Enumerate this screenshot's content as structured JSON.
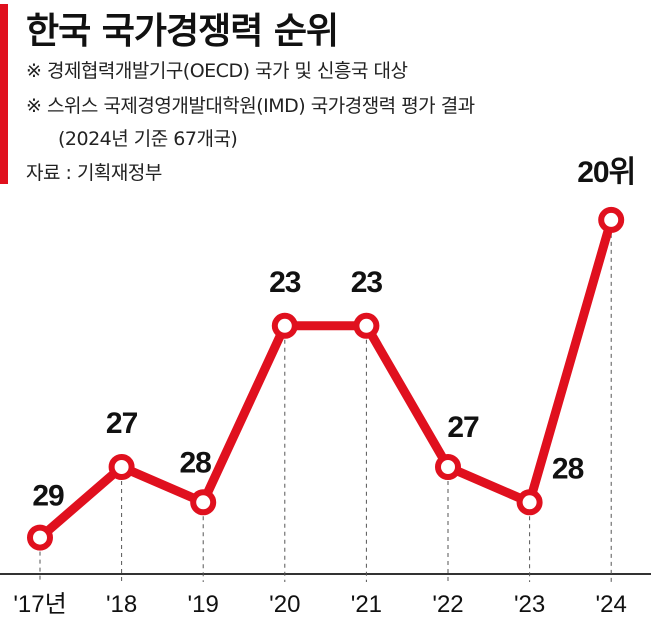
{
  "title": "한국 국가경쟁력 순위",
  "notes": [
    "※  경제협력개발기구(OECD) 국가 및 신흥국 대상",
    "※  스위스 국제경영개발대학원(IMD) 국가경쟁력 평가 결과",
    "(2024년 기준 67개국)",
    "자료 : 기획재정부"
  ],
  "colors": {
    "accent": "#e0101e",
    "text": "#111111"
  },
  "chart_data": {
    "type": "line",
    "title": "한국 국가경쟁력 순위",
    "categories": [
      "'17년",
      "'18",
      "'19",
      "'20",
      "'21",
      "'22",
      "'23",
      "'24"
    ],
    "values": [
      29,
      27,
      28,
      23,
      23,
      27,
      28,
      20
    ],
    "data_labels": [
      "29",
      "27",
      "28",
      "23",
      "23",
      "27",
      "28",
      "20위"
    ],
    "yaxis": "rank (inverted, lower is better)",
    "source": "자료 : 기획재정부"
  }
}
